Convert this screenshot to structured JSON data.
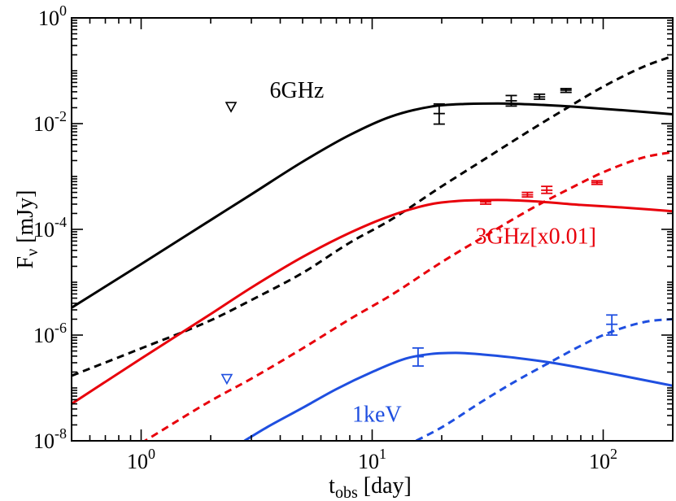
{
  "chart_data": {
    "type": "line",
    "title": "",
    "xlabel": "t_obs [day]",
    "xlabel_main": "t",
    "xlabel_sub": "obs",
    "xlabel_unit": " [day]",
    "ylabel_main": "F",
    "ylabel_sub": "ν",
    "ylabel_unit": " [mJy]",
    "xscale": "log",
    "yscale": "log",
    "xlim": [
      0.5,
      200
    ],
    "ylim": [
      1e-08,
      1
    ],
    "x_ticks": [
      {
        "value": 1,
        "base": "10",
        "exp": "0"
      },
      {
        "value": 10,
        "base": "10",
        "exp": "1"
      },
      {
        "value": 100,
        "base": "10",
        "exp": "2"
      }
    ],
    "y_ticks": [
      {
        "value": 1e-08,
        "base": "10",
        "exp": "-8"
      },
      {
        "value": 1e-06,
        "base": "10",
        "exp": "-6"
      },
      {
        "value": 0.0001,
        "base": "10",
        "exp": "-4"
      },
      {
        "value": 0.01,
        "base": "10",
        "exp": "-2"
      },
      {
        "value": 1,
        "base": "10",
        "exp": "0"
      }
    ],
    "annotations": [
      {
        "name": "label-6ghz",
        "text": "6GHz",
        "color": "#000000",
        "x": 3.6,
        "y": 0.031
      },
      {
        "name": "label-3ghz",
        "text": "3GHz[x0.01]",
        "color": "#e8000b",
        "x": 28,
        "y": 5.35e-05
      },
      {
        "name": "label-1kev",
        "text": "1keV",
        "color": "#1f4fe0",
        "x": 8.2,
        "y": 2.3e-08
      }
    ],
    "series": [
      {
        "name": "6GHz model (solid)",
        "color": "#000000",
        "dash": "none",
        "x": [
          0.5,
          1,
          2,
          3,
          5,
          8,
          12,
          18,
          25,
          35,
          50,
          80,
          120,
          200
        ],
        "y": [
          3.3e-06,
          2.2e-05,
          0.00015,
          0.00046,
          0.0019,
          0.0061,
          0.0135,
          0.021,
          0.0235,
          0.024,
          0.023,
          0.0205,
          0.018,
          0.015
        ]
      },
      {
        "name": "6GHz model (dashed)",
        "color": "#000000",
        "dash": "9,6",
        "x": [
          0.5,
          1,
          2,
          3,
          5,
          8,
          12,
          20,
          30,
          50,
          70,
          100,
          150,
          200
        ],
        "y": [
          1.7e-07,
          5.6e-07,
          1.9e-06,
          4.6e-06,
          1.5e-05,
          5.6e-05,
          0.00015,
          0.00065,
          0.002,
          0.0082,
          0.02,
          0.05,
          0.12,
          0.19
        ]
      },
      {
        "name": "3GHz model (solid)",
        "color": "#e8000b",
        "dash": "none",
        "x": [
          0.5,
          1,
          2,
          3,
          5,
          8,
          12,
          18,
          25,
          35,
          50,
          80,
          120,
          200
        ],
        "y": [
          5e-08,
          3.6e-07,
          2.5e-06,
          7.9e-06,
          3e-05,
          8.6e-05,
          0.00018,
          0.0003,
          0.00035,
          0.00036,
          0.00034,
          0.00029,
          0.00026,
          0.00022
        ]
      },
      {
        "name": "3GHz model (dashed)",
        "color": "#e8000b",
        "dash": "9,6",
        "x": [
          1,
          2,
          3,
          5,
          8,
          12,
          20,
          30,
          50,
          70,
          100,
          150,
          200
        ],
        "y": [
          9e-09,
          5.7e-08,
          1.5e-07,
          5.6e-07,
          2e-06,
          5.6e-06,
          2.4e-05,
          7e-05,
          0.00026,
          0.00056,
          0.0012,
          0.0023,
          0.0029
        ]
      },
      {
        "name": "1keV model (solid)",
        "color": "#1f4fe0",
        "dash": "none",
        "x": [
          2.8,
          3.5,
          5,
          7,
          10,
          14,
          18,
          23,
          30,
          40,
          60,
          100,
          200
        ],
        "y": [
          1e-08,
          1.8e-08,
          4.2e-08,
          9.5e-08,
          2e-07,
          3.6e-07,
          4.4e-07,
          4.6e-07,
          4.3e-07,
          3.8e-07,
          3e-07,
          2e-07,
          1.1e-07
        ]
      },
      {
        "name": "1keV model (dashed)",
        "color": "#1f4fe0",
        "dash": "9,6",
        "x": [
          15.5,
          20,
          30,
          40,
          60,
          80,
          100,
          130,
          160,
          200
        ],
        "y": [
          1e-08,
          1.8e-08,
          5.6e-08,
          1.2e-07,
          3.2e-07,
          6.3e-07,
          1e-06,
          1.5e-06,
          1.85e-06,
          2e-06
        ]
      }
    ],
    "data_points": [
      {
        "name": "6ghz-errorbar-1",
        "color": "#000000",
        "kind": "errorbar",
        "x": 19.5,
        "y": 0.0155,
        "ylow": 0.0098,
        "yhigh": 0.0235
      },
      {
        "name": "6ghz-errorbar-2",
        "color": "#000000",
        "kind": "errorbar",
        "x": 40,
        "y": 0.027,
        "ylow": 0.0215,
        "yhigh": 0.034
      },
      {
        "name": "6ghz-errorbar-3",
        "color": "#000000",
        "kind": "errorbar",
        "x": 53,
        "y": 0.032,
        "ylow": 0.029,
        "yhigh": 0.036
      },
      {
        "name": "6ghz-errorbar-4",
        "color": "#000000",
        "kind": "errorbar",
        "x": 69,
        "y": 0.043,
        "ylow": 0.039,
        "yhigh": 0.046
      },
      {
        "name": "6ghz-upper-limit",
        "color": "#000000",
        "kind": "upper-limit",
        "x": 2.45,
        "y": 0.021
      },
      {
        "name": "3ghz-errorbar-1",
        "color": "#e8000b",
        "kind": "errorbar",
        "x": 31,
        "y": 0.00033,
        "ylow": 0.0003,
        "yhigh": 0.000365
      },
      {
        "name": "3ghz-errorbar-2",
        "color": "#e8000b",
        "kind": "errorbar",
        "x": 47,
        "y": 0.00045,
        "ylow": 0.00041,
        "yhigh": 0.0005
      },
      {
        "name": "3ghz-errorbar-3",
        "color": "#e8000b",
        "kind": "errorbar",
        "x": 57,
        "y": 0.00055,
        "ylow": 0.00048,
        "yhigh": 0.00065
      },
      {
        "name": "3ghz-errorbar-4",
        "color": "#e8000b",
        "kind": "errorbar",
        "x": 94,
        "y": 0.00077,
        "ylow": 0.00071,
        "yhigh": 0.00083
      },
      {
        "name": "1kev-errorbar-1",
        "color": "#1f4fe0",
        "kind": "errorbar",
        "x": 15.8,
        "y": 3.9e-07,
        "ylow": 2.6e-07,
        "yhigh": 5.7e-07
      },
      {
        "name": "1kev-errorbar-2",
        "color": "#1f4fe0",
        "kind": "errorbar",
        "x": 109,
        "y": 1.6e-06,
        "ylow": 1e-06,
        "yhigh": 2.4e-06
      },
      {
        "name": "1kev-upper-limit",
        "color": "#1f4fe0",
        "kind": "upper-limit",
        "x": 2.35,
        "y": 1.5e-07
      }
    ]
  }
}
